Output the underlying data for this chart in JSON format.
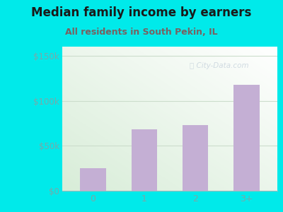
{
  "title": "Median family income by earners",
  "subtitle": "All residents in South Pekin, IL",
  "categories": [
    "0",
    "1",
    "2",
    "3+"
  ],
  "values": [
    25000,
    68000,
    73000,
    118000
  ],
  "bar_color": "#c4afd4",
  "title_color": "#1a1a1a",
  "subtitle_color": "#7a6060",
  "outer_bg_color": "#00eaea",
  "plot_bg_top_left": "#d8edd8",
  "plot_bg_bottom_right": "#ffffff",
  "yticks": [
    0,
    50000,
    100000,
    150000
  ],
  "ytick_labels": [
    "$0",
    "$50k",
    "$100k",
    "$150k"
  ],
  "ylim": [
    0,
    160000
  ],
  "watermark": "City-Data.com",
  "title_fontsize": 12,
  "subtitle_fontsize": 9,
  "tick_color": "#77aaaa",
  "grid_color": "#ccddcc",
  "yticklabel_color": "#77aaaa"
}
